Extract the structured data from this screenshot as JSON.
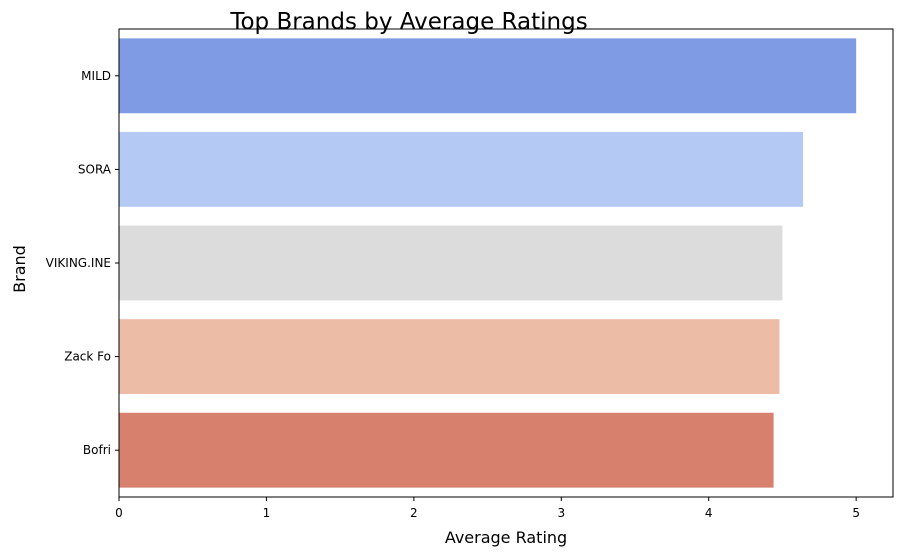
{
  "chart_data": {
    "type": "bar",
    "orientation": "horizontal",
    "title": "Top Brands by Average Ratings",
    "xlabel": "Average Rating",
    "ylabel": "Brand",
    "categories": [
      "MILD",
      "SORA",
      "VIKING.INE",
      "Zack Fo",
      "Bofri"
    ],
    "values": [
      5.0,
      4.64,
      4.5,
      4.48,
      4.44
    ],
    "colors": [
      "#7f9be4",
      "#b4c9f4",
      "#dcdcdc",
      "#edbca6",
      "#d6806d"
    ],
    "xlim": [
      0,
      5.25
    ],
    "xticks": [
      "0",
      "1",
      "2",
      "3",
      "4",
      "5"
    ],
    "grid": false,
    "legend": "none"
  }
}
